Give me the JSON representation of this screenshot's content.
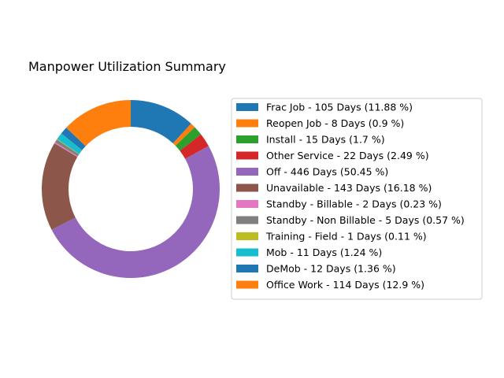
{
  "chart_data": {
    "type": "pie",
    "donut": true,
    "title": "Manpower Utilization Summary",
    "start_angle_deg": 90,
    "direction": "clockwise",
    "legend_position": "right",
    "slices": [
      {
        "label": "Frac Job - 105 Days (11.88 %)",
        "value": 105,
        "color": "#1f77b4"
      },
      {
        "label": "Reopen Job - 8 Days (0.9 %)",
        "value": 8,
        "color": "#ff7f0e"
      },
      {
        "label": "Install - 15 Days (1.7 %)",
        "value": 15,
        "color": "#2ca02c"
      },
      {
        "label": "Other Service - 22 Days (2.49 %)",
        "value": 22,
        "color": "#d62728"
      },
      {
        "label": "Off - 446 Days (50.45 %)",
        "value": 446,
        "color": "#9467bd"
      },
      {
        "label": "Unavailable - 143 Days (16.18 %)",
        "value": 143,
        "color": "#8c564b"
      },
      {
        "label": "Standby - Billable - 2 Days (0.23 %)",
        "value": 2,
        "color": "#e377c2"
      },
      {
        "label": "Standby - Non Billable - 5 Days (0.57 %)",
        "value": 5,
        "color": "#7f7f7f"
      },
      {
        "label": "Training - Field - 1 Days (0.11 %)",
        "value": 1,
        "color": "#bcbd22"
      },
      {
        "label": "Mob - 11 Days (1.24 %)",
        "value": 11,
        "color": "#17becf"
      },
      {
        "label": "DeMob - 12 Days (1.36 %)",
        "value": 12,
        "color": "#1f77b4"
      },
      {
        "label": "Office Work - 114 Days (12.9 %)",
        "value": 114,
        "color": "#ff7f0e"
      }
    ]
  }
}
